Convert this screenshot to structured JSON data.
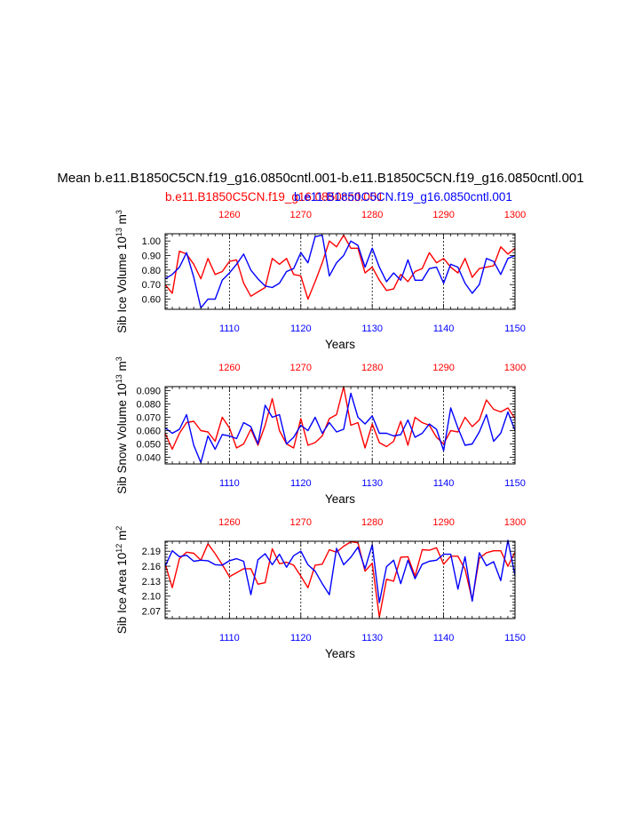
{
  "title": "Mean b.e11.B1850C5CN.f19_g16.0850cntl.001-b.e11.B1850C5CN.f19_g16.0850cntl.001",
  "legend": {
    "series_a": "b.e11.B1850C5CN.f19_g16.0850cntl.001",
    "series_b": "b.e11.B1850C5CN.f19_g16.0850cntl.001",
    "label_red": "b.e11.B1850C5CN.f19_g16.0850cntl.001",
    "label_blue": "b.e11.B1850C5CN.f19_g16.0850cntl.001"
  },
  "colors": {
    "red": "#ff0000",
    "blue": "#0000ff",
    "axis": "#000000"
  },
  "chart_data": [
    {
      "type": "line",
      "ylabel": "Sib Ice Volume 10^13 m^3",
      "ylabel_main": "Sib Ice Volume 10",
      "ylabel_exp1": "13",
      "ylabel_unit": "m",
      "ylabel_exp2": "3",
      "xlabel": "Years",
      "ylim": [
        0.53,
        1.05
      ],
      "yticks": [
        0.6,
        0.7,
        0.8,
        0.9,
        1.0
      ],
      "ytick_labels": [
        "0.60",
        "0.70",
        "0.80",
        "0.90",
        "1.00"
      ],
      "bottom_axis": {
        "range": [
          1101,
          1150
        ],
        "ticks": [
          1110,
          1120,
          1130,
          1140,
          1150
        ],
        "tick_labels": [
          "1110",
          "1120",
          "1130",
          "1140",
          "1150"
        ]
      },
      "top_axis": {
        "range": [
          1251,
          1300
        ],
        "ticks": [
          1260,
          1270,
          1280,
          1290,
          1300
        ],
        "tick_labels": [
          "1260",
          "1270",
          "1280",
          "1290",
          "1300"
        ]
      },
      "series": [
        {
          "name": "b.e11.B1850C5CN.f19_g16.0850cntl.001",
          "color": "red",
          "axis": "top",
          "values": [
            0.7,
            0.64,
            0.93,
            0.91,
            0.84,
            0.74,
            0.88,
            0.77,
            0.79,
            0.86,
            0.87,
            0.71,
            0.62,
            0.65,
            0.68,
            0.88,
            0.84,
            0.88,
            0.77,
            0.76,
            0.6,
            0.72,
            0.85,
            1.0,
            0.96,
            1.04,
            0.95,
            0.95,
            0.78,
            0.82,
            0.73,
            0.66,
            0.67,
            0.77,
            0.72,
            0.79,
            0.81,
            0.92,
            0.85,
            0.88,
            0.82,
            0.78,
            0.88,
            0.75,
            0.81,
            0.82,
            0.83,
            0.96,
            0.91,
            0.95
          ]
        },
        {
          "name": "b.e11.B1850C5CN.f19_g16.0850cntl.001",
          "color": "blue",
          "axis": "bottom",
          "values": [
            0.74,
            0.77,
            0.82,
            0.92,
            0.75,
            0.54,
            0.6,
            0.6,
            0.73,
            0.78,
            0.84,
            0.91,
            0.8,
            0.74,
            0.69,
            0.68,
            0.71,
            0.79,
            0.81,
            0.92,
            0.85,
            1.03,
            1.04,
            0.76,
            0.85,
            0.9,
            1.0,
            0.97,
            0.82,
            0.95,
            0.82,
            0.72,
            0.78,
            0.73,
            0.87,
            0.73,
            0.73,
            0.81,
            0.82,
            0.71,
            0.84,
            0.82,
            0.71,
            0.64,
            0.7,
            0.88,
            0.86,
            0.77,
            0.88,
            0.9
          ]
        }
      ]
    },
    {
      "type": "line",
      "ylabel": "Sib Snow Volume 10^13 m^3",
      "ylabel_main": "Sib Snow Volume 10",
      "ylabel_exp1": "13",
      "ylabel_unit": "m",
      "ylabel_exp2": "3",
      "xlabel": "Years",
      "ylim": [
        0.035,
        0.093
      ],
      "yticks": [
        0.04,
        0.05,
        0.06,
        0.07,
        0.08,
        0.09
      ],
      "ytick_labels": [
        "0.040",
        "0.050",
        "0.060",
        "0.070",
        "0.080",
        "0.090"
      ],
      "bottom_axis": {
        "range": [
          1101,
          1150
        ],
        "ticks": [
          1110,
          1120,
          1130,
          1140,
          1150
        ],
        "tick_labels": [
          "1110",
          "1120",
          "1130",
          "1140",
          "1150"
        ]
      },
      "top_axis": {
        "range": [
          1251,
          1300
        ],
        "ticks": [
          1260,
          1270,
          1280,
          1290,
          1300
        ],
        "tick_labels": [
          "1260",
          "1270",
          "1280",
          "1290",
          "1300"
        ]
      },
      "series": [
        {
          "name": "b.e11.B1850C5CN.f19_g16.0850cntl.001",
          "color": "red",
          "axis": "top",
          "values": [
            0.058,
            0.046,
            0.058,
            0.066,
            0.067,
            0.06,
            0.059,
            0.052,
            0.07,
            0.062,
            0.047,
            0.05,
            0.061,
            0.049,
            0.064,
            0.084,
            0.06,
            0.05,
            0.047,
            0.069,
            0.049,
            0.051,
            0.056,
            0.069,
            0.072,
            0.093,
            0.064,
            0.066,
            0.047,
            0.065,
            0.051,
            0.048,
            0.052,
            0.067,
            0.049,
            0.07,
            0.066,
            0.064,
            0.055,
            0.05,
            0.06,
            0.059,
            0.07,
            0.063,
            0.068,
            0.083,
            0.076,
            0.074,
            0.077,
            0.069
          ]
        },
        {
          "name": "b.e11.B1850C5CN.f19_g16.0850cntl.001",
          "color": "blue",
          "axis": "bottom",
          "values": [
            0.062,
            0.058,
            0.061,
            0.072,
            0.049,
            0.036,
            0.056,
            0.046,
            0.057,
            0.056,
            0.054,
            0.066,
            0.063,
            0.05,
            0.079,
            0.07,
            0.072,
            0.05,
            0.055,
            0.064,
            0.06,
            0.07,
            0.058,
            0.066,
            0.059,
            0.061,
            0.088,
            0.07,
            0.065,
            0.071,
            0.058,
            0.058,
            0.056,
            0.057,
            0.068,
            0.055,
            0.058,
            0.065,
            0.061,
            0.045,
            0.077,
            0.062,
            0.049,
            0.05,
            0.059,
            0.072,
            0.052,
            0.058,
            0.074,
            0.06
          ]
        }
      ]
    },
    {
      "type": "line",
      "ylabel": "Sib Ice Area 10^12 m^2",
      "ylabel_main": "Sib Ice Area 10",
      "ylabel_exp1": "12",
      "ylabel_unit": "m",
      "ylabel_exp2": "2",
      "xlabel": "Years",
      "ylim": [
        2.055,
        2.21
      ],
      "yticks": [
        2.07,
        2.1,
        2.13,
        2.16,
        2.19
      ],
      "ytick_labels": [
        "2.07",
        "2.10",
        "2.13",
        "2.16",
        "2.19"
      ],
      "bottom_axis": {
        "range": [
          1101,
          1150
        ],
        "ticks": [
          1110,
          1120,
          1130,
          1140,
          1150
        ],
        "tick_labels": [
          "1110",
          "1120",
          "1130",
          "1140",
          "1150"
        ]
      },
      "top_axis": {
        "range": [
          1251,
          1300
        ],
        "ticks": [
          1260,
          1270,
          1280,
          1290,
          1300
        ],
        "tick_labels": [
          "1260",
          "1270",
          "1280",
          "1290",
          "1300"
        ]
      },
      "series": [
        {
          "name": "b.e11.B1850C5CN.f19_g16.0850cntl.001",
          "color": "red",
          "axis": "top",
          "values": [
            2.165,
            2.117,
            2.175,
            2.188,
            2.186,
            2.172,
            2.205,
            2.185,
            2.163,
            2.139,
            2.147,
            2.155,
            2.155,
            2.124,
            2.127,
            2.195,
            2.165,
            2.168,
            2.162,
            2.14,
            2.117,
            2.162,
            2.164,
            2.193,
            2.188,
            2.2,
            2.209,
            2.207,
            2.15,
            2.166,
            2.058,
            2.134,
            2.13,
            2.178,
            2.179,
            2.14,
            2.193,
            2.192,
            2.197,
            2.164,
            2.18,
            2.18,
            2.154,
            2.092,
            2.176,
            2.187,
            2.191,
            2.191,
            2.16,
            2.188
          ]
        },
        {
          "name": "b.e11.B1850C5CN.f19_g16.0850cntl.001",
          "color": "blue",
          "axis": "bottom",
          "values": [
            2.16,
            2.191,
            2.179,
            2.182,
            2.17,
            2.172,
            2.171,
            2.163,
            2.162,
            2.171,
            2.175,
            2.17,
            2.103,
            2.173,
            2.185,
            2.163,
            2.184,
            2.158,
            2.181,
            2.19,
            2.163,
            2.15,
            2.125,
            2.103,
            2.196,
            2.163,
            2.178,
            2.198,
            2.155,
            2.203,
            2.087,
            2.159,
            2.172,
            2.125,
            2.172,
            2.135,
            2.164,
            2.17,
            2.172,
            2.184,
            2.184,
            2.114,
            2.179,
            2.09,
            2.187,
            2.161,
            2.169,
            2.131,
            2.212,
            2.141
          ]
        }
      ]
    }
  ]
}
